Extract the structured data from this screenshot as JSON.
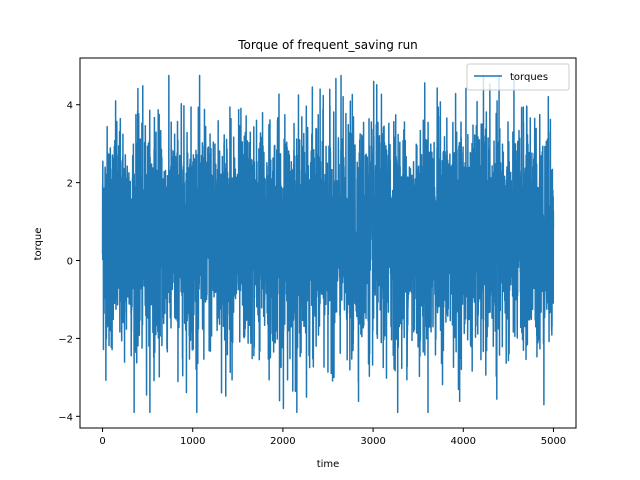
{
  "chart_data": {
    "type": "line",
    "title": "Torque of frequent_saving run",
    "xlabel": "time",
    "ylabel": "torque",
    "xlim": [
      -250,
      5250
    ],
    "ylim": [
      -4.3,
      5.2
    ],
    "xticks": [
      0,
      1000,
      2000,
      3000,
      4000,
      5000
    ],
    "yticks": [
      -4,
      -2,
      0,
      2,
      4
    ],
    "xtick_labels": [
      "0",
      "1000",
      "2000",
      "3000",
      "4000",
      "5000"
    ],
    "ytick_labels": [
      "−4",
      "−2",
      "0",
      "2",
      "4"
    ],
    "grid": false,
    "legend": {
      "position": "top-right",
      "entries": [
        "torques"
      ]
    },
    "series": [
      {
        "name": "torques",
        "color": "#1f77b4",
        "x_range": [
          0,
          5000
        ],
        "n_points": 5000,
        "mean": 0.6,
        "std": 1.4,
        "min": -3.9,
        "max": 4.75
      }
    ]
  }
}
